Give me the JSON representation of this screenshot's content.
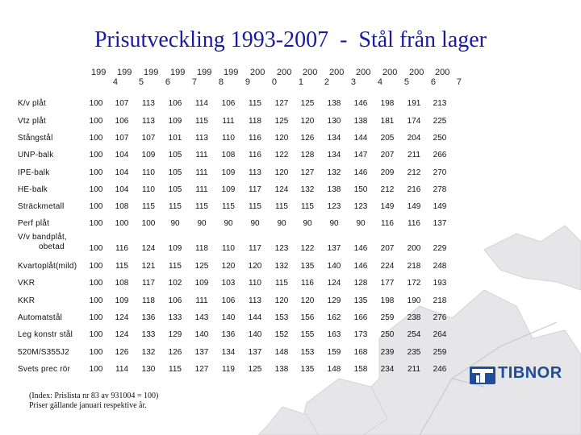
{
  "title": "Prisutveckling 1993-2007  -  Stål från lager",
  "years": [
    {
      "top": "199",
      "bottom": "4"
    },
    {
      "top": "199",
      "bottom": "5"
    },
    {
      "top": "199",
      "bottom": "6"
    },
    {
      "top": "199",
      "bottom": "7"
    },
    {
      "top": "199",
      "bottom": "8"
    },
    {
      "top": "199",
      "bottom": "9"
    },
    {
      "top": "200",
      "bottom": "0"
    },
    {
      "top": "200",
      "bottom": "1"
    },
    {
      "top": "200",
      "bottom": "2"
    },
    {
      "top": "200",
      "bottom": "3"
    },
    {
      "top": "200",
      "bottom": "4"
    },
    {
      "top": "200",
      "bottom": "5"
    },
    {
      "top": "200",
      "bottom": "6"
    },
    {
      "top": "200",
      "bottom": "7"
    }
  ],
  "rows": [
    {
      "label": [
        "K/v plåt"
      ],
      "values": [
        "100",
        "107",
        "113",
        "106",
        "114",
        "106",
        "115",
        "127",
        "125",
        "138",
        "146",
        "198",
        "191",
        "213"
      ]
    },
    {
      "label": [
        "Vtz plåt"
      ],
      "values": [
        "100",
        "106",
        "113",
        "109",
        "115",
        "111",
        "118",
        "125",
        "120",
        "130",
        "138",
        "181",
        "174",
        "225"
      ]
    },
    {
      "label": [
        "Stångstål"
      ],
      "values": [
        "100",
        "107",
        "107",
        "101",
        "113",
        "110",
        "116",
        "120",
        "126",
        "134",
        "144",
        "205",
        "204",
        "250"
      ]
    },
    {
      "label": [
        "UNP-balk"
      ],
      "values": [
        "100",
        "104",
        "109",
        "105",
        "111",
        "108",
        "116",
        "122",
        "128",
        "134",
        "147",
        "207",
        "211",
        "266"
      ]
    },
    {
      "label": [
        "IPE-balk"
      ],
      "values": [
        "100",
        "104",
        "110",
        "105",
        "111",
        "109",
        "113",
        "120",
        "127",
        "132",
        "146",
        "209",
        "212",
        "270"
      ]
    },
    {
      "label": [
        "HE-balk"
      ],
      "values": [
        "100",
        "104",
        "110",
        "105",
        "111",
        "109",
        "117",
        "124",
        "132",
        "138",
        "150",
        "212",
        "216",
        "278"
      ]
    },
    {
      "label": [
        "Sträckmetall"
      ],
      "values": [
        "100",
        "108",
        "115",
        "115",
        "115",
        "115",
        "115",
        "115",
        "115",
        "123",
        "123",
        "149",
        "149",
        "149"
      ]
    },
    {
      "label": [
        "Perf plåt"
      ],
      "values": [
        "100",
        "100",
        "100",
        "90",
        "90",
        "90",
        "90",
        "90",
        "90",
        "90",
        "90",
        "116",
        "116",
        "137"
      ]
    },
    {
      "label": [
        "V/v bandplåt,",
        "obetad"
      ],
      "values": [
        "100",
        "116",
        "124",
        "109",
        "118",
        "110",
        "117",
        "123",
        "122",
        "137",
        "146",
        "207",
        "200",
        "229"
      ]
    },
    {
      "label": [
        "Kvartoplåt(mild)"
      ],
      "values": [
        "100",
        "115",
        "121",
        "115",
        "125",
        "120",
        "120",
        "132",
        "135",
        "140",
        "146",
        "224",
        "218",
        "248"
      ]
    },
    {
      "label": [
        "VKR"
      ],
      "values": [
        "100",
        "108",
        "117",
        "102",
        "109",
        "103",
        "110",
        "115",
        "116",
        "124",
        "128",
        "177",
        "172",
        "193"
      ]
    },
    {
      "label": [
        "KKR"
      ],
      "values": [
        "100",
        "109",
        "118",
        "106",
        "111",
        "106",
        "113",
        "120",
        "120",
        "129",
        "135",
        "198",
        "190",
        "218"
      ]
    },
    {
      "label": [
        "Automatstål"
      ],
      "values": [
        "100",
        "124",
        "136",
        "133",
        "143",
        "140",
        "144",
        "153",
        "156",
        "162",
        "166",
        "259",
        "238",
        "276"
      ]
    },
    {
      "label": [
        "Leg konstr stål"
      ],
      "values": [
        "100",
        "124",
        "133",
        "129",
        "140",
        "136",
        "140",
        "152",
        "155",
        "163",
        "173",
        "250",
        "254",
        "264"
      ]
    },
    {
      "label": [
        "520M/S355J2"
      ],
      "values": [
        "100",
        "126",
        "132",
        "126",
        "137",
        "134",
        "137",
        "148",
        "153",
        "159",
        "168",
        "239",
        "235",
        "259"
      ]
    },
    {
      "label": [
        "Svets prec rör"
      ],
      "values": [
        "100",
        "114",
        "130",
        "115",
        "127",
        "119",
        "125",
        "138",
        "135",
        "148",
        "158",
        "234",
        "211",
        "246"
      ]
    }
  ],
  "note": [
    "(Index:  Prislista nr 83 av 931004 = 100)",
    "Priser gällande januari respektive år."
  ],
  "logo": {
    "text": "TIBNOR",
    "color": "#1f4d9a",
    "icon": "tibnor-logo-icon"
  }
}
